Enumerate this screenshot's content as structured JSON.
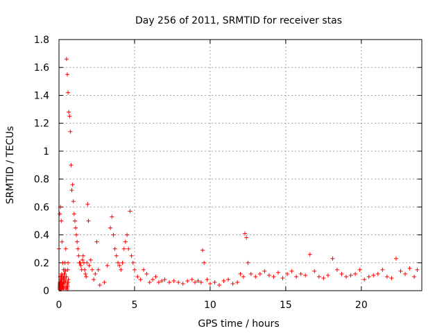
{
  "chart_data": {
    "type": "scatter",
    "title": "Day 256 of 2011, SRMTID for receiver stas",
    "xlabel": "GPS time / hours",
    "ylabel": "SRMTID / TECUs",
    "xlim": [
      0,
      24
    ],
    "ylim": [
      0,
      1.8
    ],
    "xticks": [
      0,
      5,
      10,
      15,
      20
    ],
    "xtick_labels": [
      "0",
      "5",
      "10",
      "15",
      "20"
    ],
    "yticks": [
      0,
      0.2,
      0.4,
      0.6,
      0.8,
      1.0,
      1.2,
      1.4,
      1.6,
      1.8
    ],
    "ytick_labels": [
      "0",
      "0.2",
      "0.4",
      "0.6",
      "0.8",
      "1",
      "1.2",
      "1.4",
      "1.6",
      "1.8"
    ],
    "grid": true,
    "marker": "+",
    "series": [
      {
        "name": "SRMTID",
        "color": "#ff0000",
        "x": [
          0.0,
          0.05,
          0.1,
          0.15,
          0.2,
          0.25,
          0.3,
          0.35,
          0.4,
          0.45,
          0.5,
          0.55,
          0.6,
          0.65,
          0.7,
          0.75,
          0.8,
          0.85,
          0.9,
          0.95,
          1.0,
          1.05,
          1.1,
          1.15,
          1.2,
          1.25,
          1.3,
          1.35,
          1.4,
          1.45,
          1.5,
          1.55,
          1.6,
          1.65,
          1.7,
          1.75,
          1.8,
          1.85,
          1.9,
          1.95,
          2.0,
          2.1,
          2.2,
          2.3,
          2.4,
          2.5,
          2.6,
          2.7,
          3.0,
          3.2,
          3.4,
          3.5,
          3.6,
          3.7,
          3.8,
          3.9,
          4.0,
          4.1,
          4.2,
          4.3,
          4.4,
          4.5,
          4.6,
          4.7,
          4.8,
          4.9,
          5.0,
          5.2,
          5.4,
          5.6,
          5.8,
          6.0,
          6.2,
          6.4,
          6.6,
          6.8,
          7.0,
          7.3,
          7.6,
          7.9,
          8.2,
          8.5,
          8.8,
          9.0,
          9.2,
          9.4,
          9.5,
          9.6,
          9.8,
          10.0,
          10.3,
          10.6,
          10.9,
          11.2,
          11.5,
          11.8,
          12.0,
          12.2,
          12.3,
          12.4,
          12.5,
          12.7,
          13.0,
          13.3,
          13.6,
          13.9,
          14.2,
          14.5,
          14.8,
          15.1,
          15.4,
          15.7,
          16.0,
          16.3,
          16.6,
          16.9,
          17.2,
          17.5,
          17.8,
          18.1,
          18.4,
          18.7,
          19.0,
          19.3,
          19.6,
          19.9,
          20.2,
          20.5,
          20.8,
          21.1,
          21.4,
          21.7,
          22.0,
          22.3,
          22.6,
          22.9,
          23.2,
          23.5,
          23.7,
          0.08,
          0.12,
          0.18,
          0.22,
          0.28,
          0.35,
          0.42,
          0.48,
          0.55,
          0.6,
          0.5,
          0.55,
          0.58,
          0.6,
          0.62,
          0.58,
          0.55,
          0.52,
          0.48,
          0.42,
          0.38,
          0.33,
          0.3,
          0.27,
          0.22,
          0.18,
          0.14,
          0.1,
          0.06,
          0.04,
          0.08,
          0.12,
          0.16,
          0.2,
          0.24,
          0.2,
          0.15,
          0.1,
          0.07,
          0.05,
          0.12,
          0.18,
          0.1,
          0.06,
          0.04,
          0.14,
          0.2,
          0.06,
          0.04,
          0.05,
          0.12,
          0.22,
          0.3,
          0.38,
          0.45,
          0.4,
          0.35,
          0.28,
          0.22,
          0.18,
          0.3,
          0.36,
          0.25,
          0.16,
          0.12,
          0.1,
          0.08,
          0.1,
          0.12,
          0.14,
          0.08,
          0.05,
          0.06,
          0.08,
          0.07,
          0.06,
          0.05,
          0.08,
          0.1,
          0.04,
          0.06,
          0.07,
          0.09,
          0.08,
          0.12,
          0.16,
          0.22,
          0.18,
          0.1,
          0.06,
          0.08,
          0.05,
          0.07,
          0.09,
          0.06,
          0.1,
          0.14,
          0.24,
          0.3,
          0.2,
          0.14,
          0.1,
          0.08,
          0.12,
          0.1,
          0.14,
          0.08,
          0.12,
          0.1,
          0.13,
          0.09,
          0.15,
          0.12,
          0.1,
          0.18,
          0.14,
          0.1,
          0.08,
          0.12,
          0.2,
          0.15,
          0.1,
          0.12,
          0.09,
          0.1,
          0.14,
          0.08,
          0.1,
          0.07,
          0.12,
          0.16,
          0.1,
          0.08,
          0.14,
          0.18,
          0.12,
          0.1,
          0.08,
          0.12,
          0.05
        ],
        "y": [
          0.3,
          0.55,
          0.6,
          0.5,
          0.35,
          0.2,
          0.15,
          0.1,
          0.2,
          0.3,
          1.66,
          1.55,
          1.42,
          1.28,
          1.25,
          1.14,
          0.9,
          0.72,
          0.76,
          0.64,
          0.55,
          0.5,
          0.45,
          0.4,
          0.35,
          0.3,
          0.25,
          0.2,
          0.2,
          0.18,
          0.15,
          0.22,
          0.25,
          0.2,
          0.15,
          0.12,
          0.1,
          0.2,
          0.62,
          0.5,
          0.18,
          0.22,
          0.15,
          0.08,
          0.12,
          0.35,
          0.15,
          0.04,
          0.06,
          0.18,
          0.45,
          0.53,
          0.4,
          0.3,
          0.25,
          0.2,
          0.18,
          0.15,
          0.2,
          0.3,
          0.35,
          0.4,
          0.3,
          0.57,
          0.25,
          0.2,
          0.15,
          0.1,
          0.08,
          0.15,
          0.12,
          0.06,
          0.08,
          0.1,
          0.06,
          0.07,
          0.08,
          0.06,
          0.07,
          0.06,
          0.05,
          0.07,
          0.08,
          0.06,
          0.07,
          0.06,
          0.29,
          0.2,
          0.08,
          0.05,
          0.06,
          0.04,
          0.07,
          0.08,
          0.05,
          0.06,
          0.12,
          0.1,
          0.41,
          0.38,
          0.2,
          0.12,
          0.1,
          0.12,
          0.14,
          0.11,
          0.1,
          0.13,
          0.09,
          0.12,
          0.14,
          0.1,
          0.12,
          0.11,
          0.26,
          0.14,
          0.1,
          0.09,
          0.11,
          0.23,
          0.15,
          0.12,
          0.1,
          0.11,
          0.12,
          0.15,
          0.08,
          0.1,
          0.11,
          0.12,
          0.15,
          0.1,
          0.09,
          0.23,
          0.14,
          0.12,
          0.16,
          0.1,
          0.15,
          0.1,
          0.01,
          0.05,
          0.08,
          0.03,
          0.12,
          0.02,
          0.1,
          0.04,
          0.06,
          0.02,
          0.01,
          0.03,
          0.2,
          0.08,
          0.15,
          0.05,
          0.02,
          0.1,
          0.14,
          0.06,
          0.02,
          0.09,
          0.05,
          0.02,
          0.12,
          0.08,
          0.04,
          0.02,
          0.01,
          0.03,
          0.06,
          0.02,
          0.09,
          0.05,
          0.03,
          0.08,
          0.01,
          0.04,
          0.02,
          0.05,
          0.1,
          0.03,
          0.06,
          0.02,
          0.01,
          0.08,
          0.04,
          0.02,
          0.03,
          0.01,
          0.05,
          0.02,
          0.12,
          0.07,
          0.15,
          0.09,
          0.04,
          0.11,
          0.03,
          0.08,
          0.06,
          0.02,
          0.1,
          0.05,
          0.03,
          0.02,
          0.04,
          0.03,
          0.06,
          0.02,
          0.03,
          0.04,
          0.02,
          0.03,
          0.05,
          0.02,
          0.03,
          0.04,
          0.02,
          0.05,
          0.03,
          0.02,
          0.04,
          0.03,
          0.05,
          0.02,
          0.03,
          0.06,
          0.04,
          0.02,
          0.03,
          0.02,
          0.04,
          0.03,
          0.05,
          0.02,
          0.04,
          0.06,
          0.03,
          0.05,
          0.04,
          0.06,
          0.03,
          0.05,
          0.04,
          0.06,
          0.03,
          0.05,
          0.04,
          0.06,
          0.05,
          0.04,
          0.06,
          0.05,
          0.04,
          0.03,
          0.05,
          0.06,
          0.04,
          0.05,
          0.04,
          0.06,
          0.05,
          0.03,
          0.04,
          0.05,
          0.06,
          0.04,
          0.05,
          0.04,
          0.03,
          0.05,
          0.04,
          0.06,
          0.05,
          0.04,
          0.03,
          0.05,
          0.02
        ]
      }
    ]
  }
}
